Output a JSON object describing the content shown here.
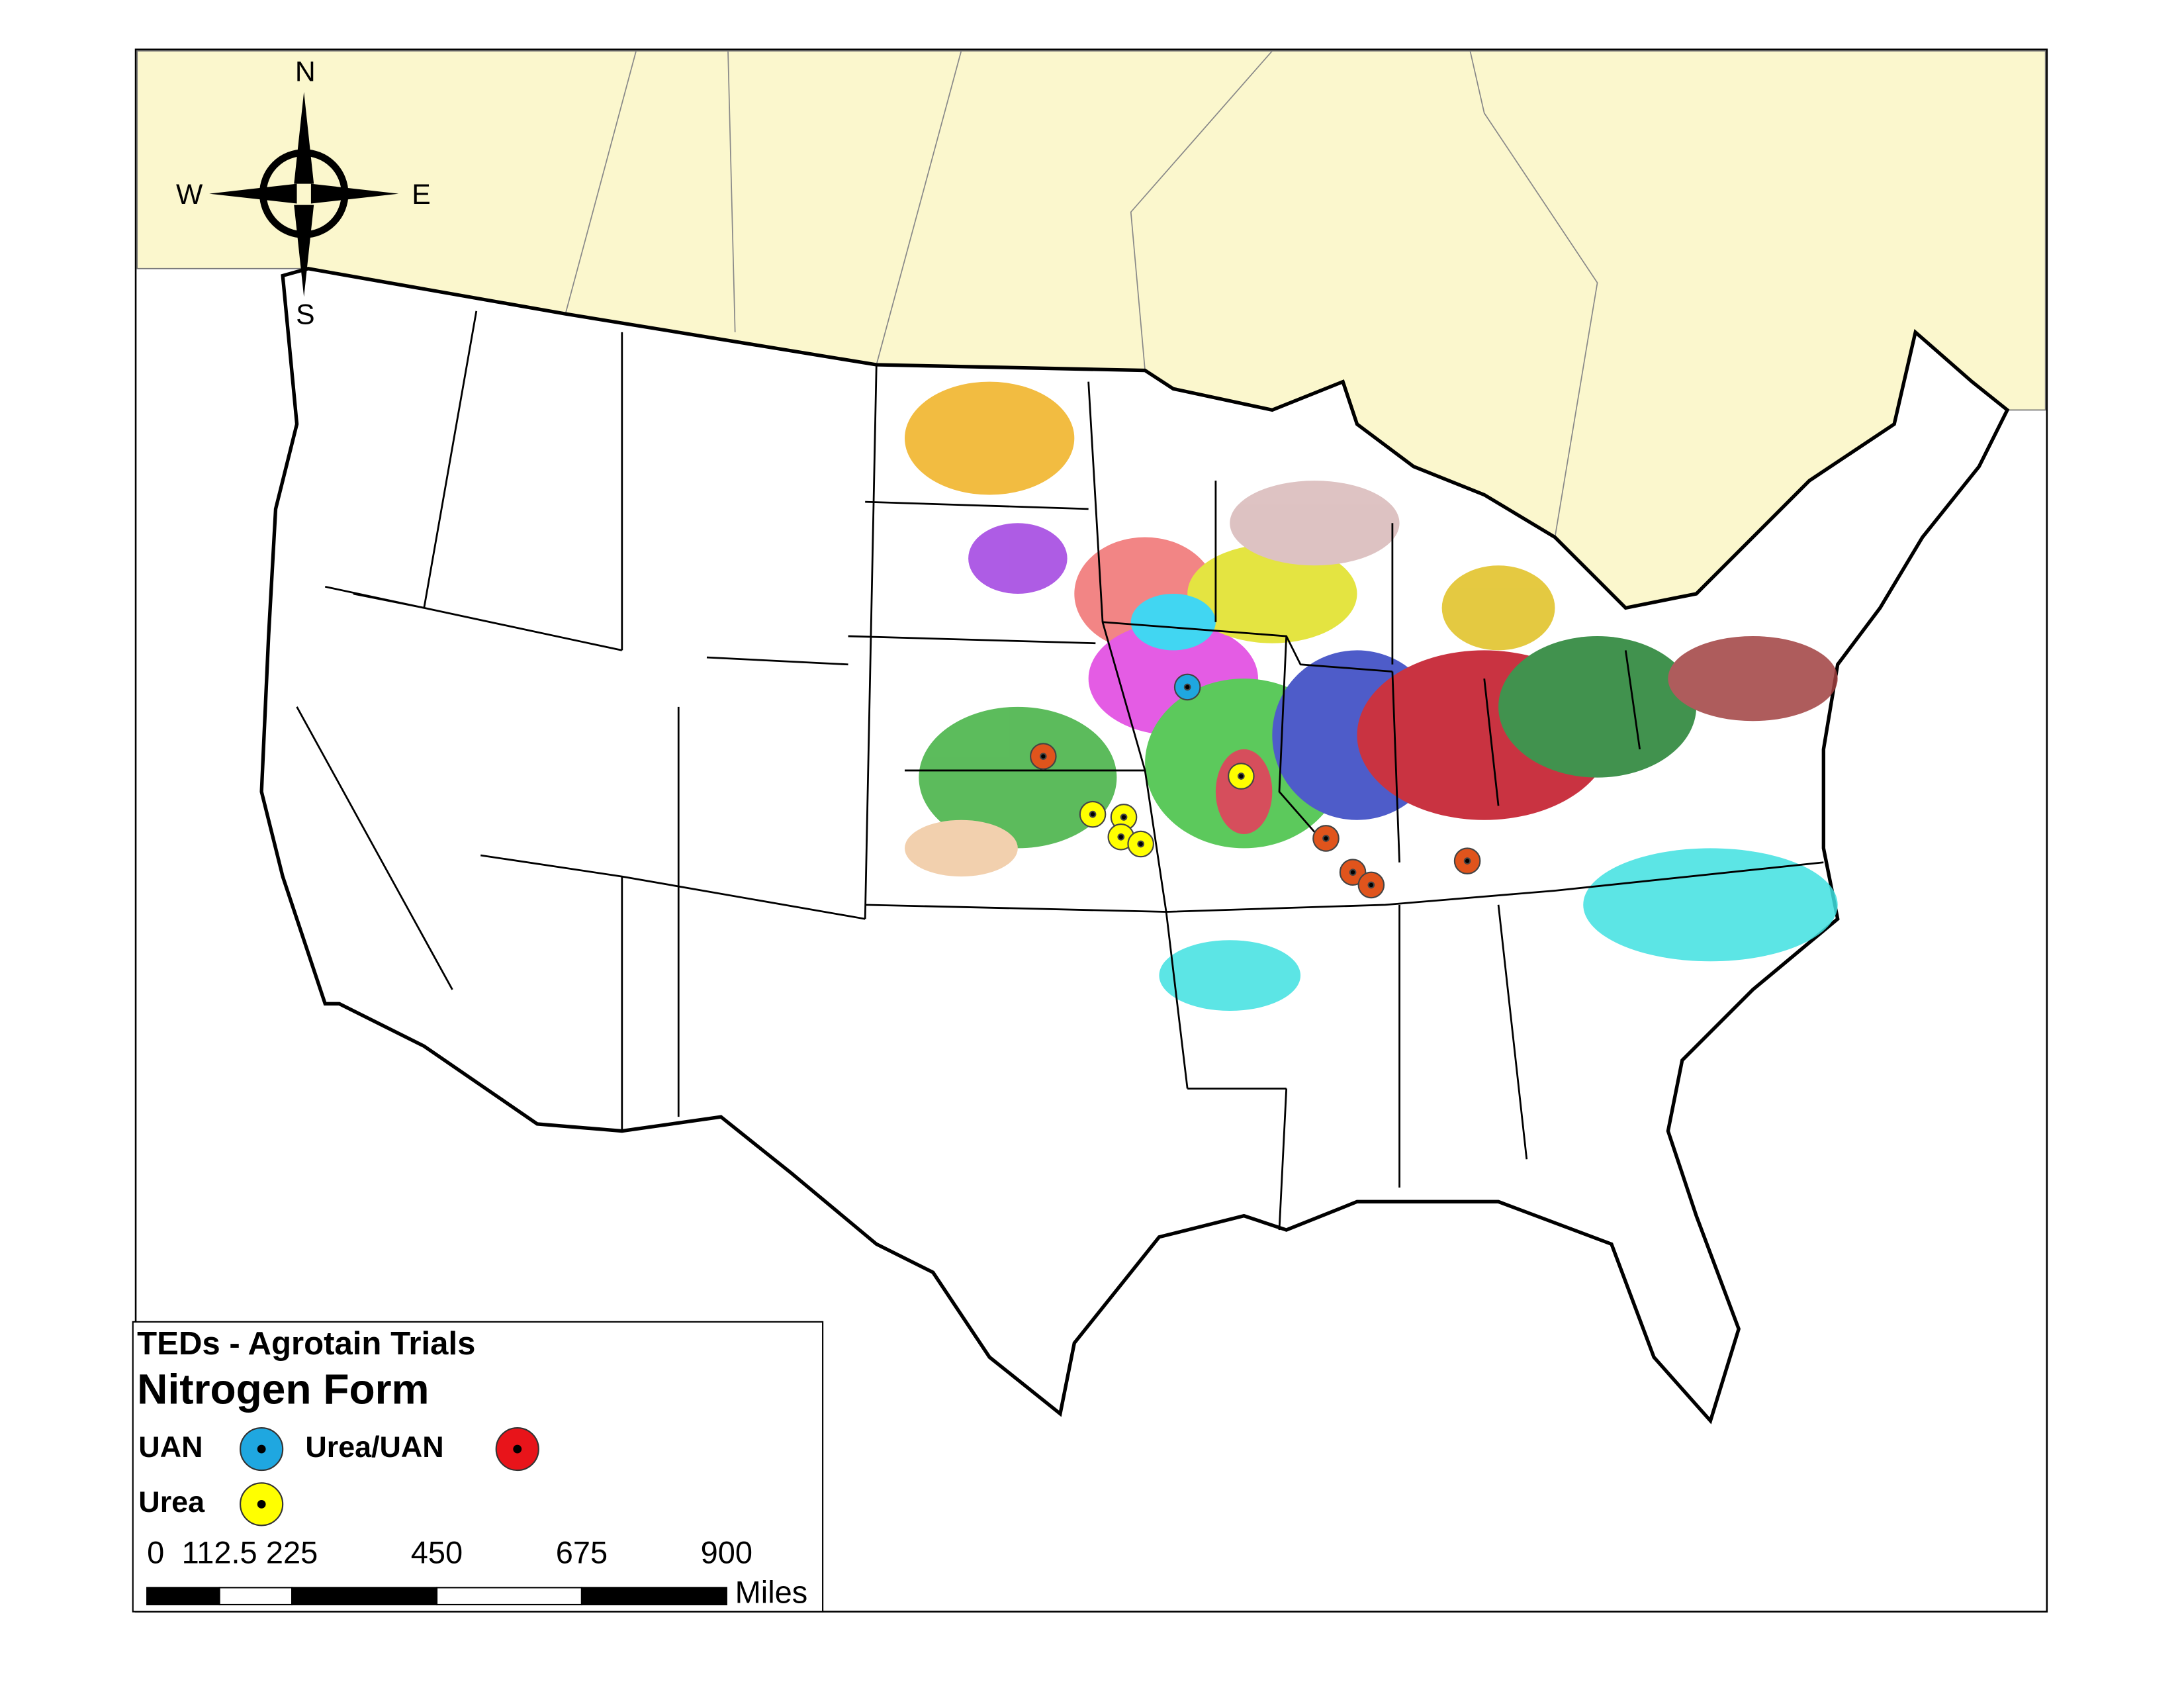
{
  "compass": {
    "north": "N",
    "south": "S",
    "east": "E",
    "west": "W"
  },
  "legend": {
    "title": "TEDs - Agrotain Trials",
    "subtitle": "Nitrogen Form",
    "items": [
      {
        "label": "UAN",
        "color": "#1fa7e0"
      },
      {
        "label": "Urea/UAN",
        "color": "#e8141a"
      },
      {
        "label": "Urea",
        "color": "#ffff00"
      }
    ]
  },
  "scale_bar": {
    "ticks": [
      0,
      112.5,
      225,
      450,
      675,
      900
    ],
    "unit": "Miles"
  }
}
